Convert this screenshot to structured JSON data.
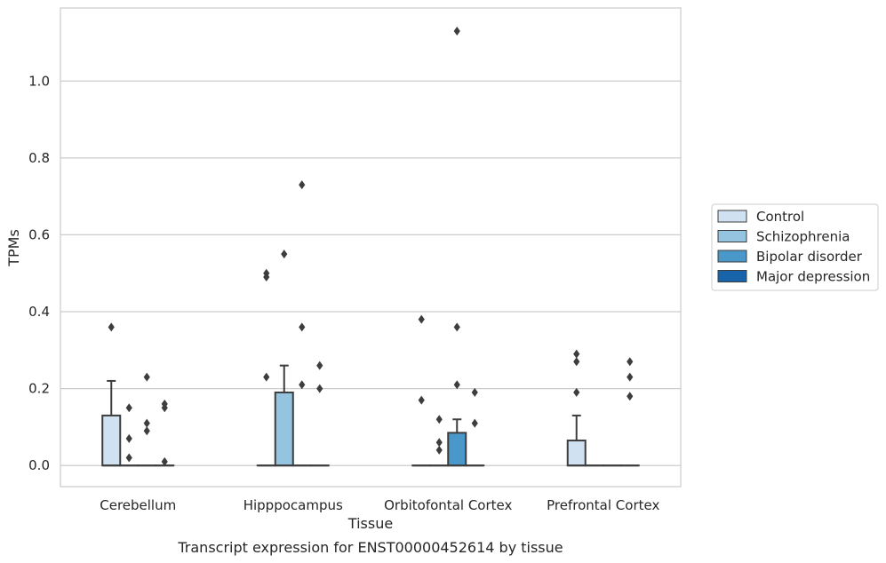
{
  "chart_data": {
    "type": "box",
    "title": "",
    "caption": "Transcript expression for ENST00000452614 by tissue",
    "xlabel": "Tissue",
    "ylabel": "TPMs",
    "ylim": [
      -0.055,
      1.19
    ],
    "yticks": [
      "0.0",
      "0.2",
      "0.4",
      "0.6",
      "0.8",
      "1.0"
    ],
    "ytick_values": [
      0.0,
      0.2,
      0.4,
      0.6,
      0.8,
      1.0
    ],
    "grid": "horizontal",
    "legend_position": "right",
    "categories": [
      "Cerebellum",
      "Hipppocampus",
      "Orbitofontal Cortex",
      "Prefrontal Cortex"
    ],
    "series": [
      {
        "name": "Control",
        "color": "#d0e1f2",
        "boxes": [
          {
            "q1": 0.0,
            "median": 0.0,
            "q3": 0.13,
            "whisker_low": 0.0,
            "whisker_high": 0.22,
            "outliers": [
              0.36
            ]
          },
          {
            "q1": 0.0,
            "median": 0.0,
            "q3": 0.0,
            "whisker_low": 0.0,
            "whisker_high": 0.0,
            "outliers": [
              0.23,
              0.49,
              0.5
            ]
          },
          {
            "q1": 0.0,
            "median": 0.0,
            "q3": 0.0,
            "whisker_low": 0.0,
            "whisker_high": 0.0,
            "outliers": [
              0.17,
              0.38
            ]
          },
          {
            "q1": 0.0,
            "median": 0.0,
            "q3": 0.065,
            "whisker_low": 0.0,
            "whisker_high": 0.13,
            "outliers": [
              0.19,
              0.27,
              0.29
            ]
          }
        ]
      },
      {
        "name": "Schizophrenia",
        "color": "#94c4df",
        "boxes": [
          {
            "q1": 0.0,
            "median": 0.0,
            "q3": 0.0,
            "whisker_low": 0.0,
            "whisker_high": 0.0,
            "outliers": [
              0.02,
              0.07,
              0.15
            ]
          },
          {
            "q1": 0.0,
            "median": 0.0,
            "q3": 0.19,
            "whisker_low": 0.0,
            "whisker_high": 0.26,
            "outliers": [
              0.55
            ]
          },
          {
            "q1": 0.0,
            "median": 0.0,
            "q3": 0.0,
            "whisker_low": 0.0,
            "whisker_high": 0.0,
            "outliers": [
              0.04,
              0.06,
              0.12
            ]
          },
          {
            "q1": 0.0,
            "median": 0.0,
            "q3": 0.0,
            "whisker_low": 0.0,
            "whisker_high": 0.0,
            "outliers": []
          }
        ]
      },
      {
        "name": "Bipolar disorder",
        "color": "#4a98c9",
        "boxes": [
          {
            "q1": 0.0,
            "median": 0.0,
            "q3": 0.0,
            "whisker_low": 0.0,
            "whisker_high": 0.0,
            "outliers": [
              0.09,
              0.11,
              0.23
            ]
          },
          {
            "q1": 0.0,
            "median": 0.0,
            "q3": 0.0,
            "whisker_low": 0.0,
            "whisker_high": 0.0,
            "outliers": [
              0.21,
              0.36,
              0.73
            ]
          },
          {
            "q1": 0.0,
            "median": 0.0,
            "q3": 0.085,
            "whisker_low": 0.0,
            "whisker_high": 0.12,
            "outliers": [
              0.21,
              0.36,
              1.13
            ]
          },
          {
            "q1": 0.0,
            "median": 0.0,
            "q3": 0.0,
            "whisker_low": 0.0,
            "whisker_high": 0.0,
            "outliers": []
          }
        ]
      },
      {
        "name": "Major depression",
        "color": "#1764ab",
        "boxes": [
          {
            "q1": 0.0,
            "median": 0.0,
            "q3": 0.0,
            "whisker_low": 0.0,
            "whisker_high": 0.0,
            "outliers": [
              0.01,
              0.15,
              0.16
            ]
          },
          {
            "q1": 0.0,
            "median": 0.0,
            "q3": 0.0,
            "whisker_low": 0.0,
            "whisker_high": 0.0,
            "outliers": [
              0.2,
              0.26
            ]
          },
          {
            "q1": 0.0,
            "median": 0.0,
            "q3": 0.0,
            "whisker_low": 0.0,
            "whisker_high": 0.0,
            "outliers": [
              0.11,
              0.19
            ]
          },
          {
            "q1": 0.0,
            "median": 0.0,
            "q3": 0.0,
            "whisker_low": 0.0,
            "whisker_high": 0.0,
            "outliers": [
              0.18,
              0.23,
              0.27
            ]
          }
        ]
      }
    ]
  }
}
